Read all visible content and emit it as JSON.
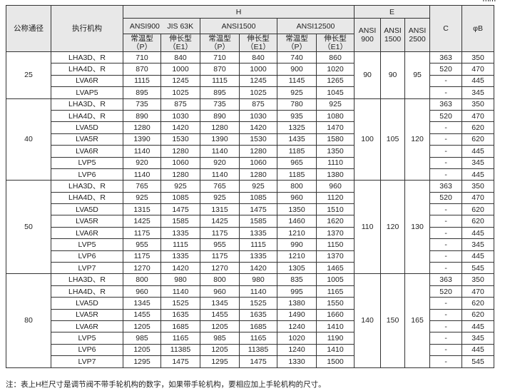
{
  "unit": "mm",
  "header": {
    "nominal": "公称通径",
    "actuator": "执行机构",
    "H": "H",
    "E": "E",
    "C": "C",
    "B": "φB",
    "h_groups": [
      "ANSI900　JIS 63K",
      "ANSI1500",
      "ANSI12500"
    ],
    "e_cols": [
      [
        "ANSI",
        "900"
      ],
      [
        "ANSI",
        "1500"
      ],
      [
        "ANSI",
        "2500"
      ]
    ],
    "std_type": [
      "常温型",
      "（P）"
    ],
    "ext_type": [
      "伸长型",
      "（E1）"
    ]
  },
  "groups": [
    {
      "size": "25",
      "E": [
        "90",
        "90",
        "95"
      ],
      "rows": [
        [
          "LHA3D、R",
          "710",
          "840",
          "710",
          "840",
          "740",
          "860",
          "363",
          "350"
        ],
        [
          "LHA4D、R",
          "870",
          "1000",
          "870",
          "1000",
          "900",
          "1020",
          "520",
          "470"
        ],
        [
          "LVA6R",
          "1115",
          "1245",
          "1115",
          "1245",
          "1145",
          "1265",
          "-",
          "445"
        ],
        [
          "LVAP5",
          "895",
          "1025",
          "895",
          "1025",
          "925",
          "1045",
          "-",
          "345"
        ]
      ]
    },
    {
      "size": "40",
      "E": [
        "100",
        "105",
        "120"
      ],
      "rows": [
        [
          "LHA3D、R",
          "735",
          "875",
          "735",
          "875",
          "780",
          "925",
          "363",
          "350"
        ],
        [
          "LHA4D、R",
          "890",
          "1030",
          "890",
          "1030",
          "935",
          "1080",
          "520",
          "470"
        ],
        [
          "LVA5D",
          "1280",
          "1420",
          "1280",
          "1420",
          "1325",
          "1470",
          "-",
          "620"
        ],
        [
          "LVA5R",
          "1390",
          "1530",
          "1390",
          "1530",
          "1435",
          "1580",
          "-",
          "620"
        ],
        [
          "LVA6R",
          "1140",
          "1280",
          "1140",
          "1280",
          "1185",
          "1350",
          "-",
          "445"
        ],
        [
          "LVP5",
          "920",
          "1060",
          "920",
          "1060",
          "965",
          "1110",
          "-",
          "345"
        ],
        [
          "LVP6",
          "1140",
          "1280",
          "1140",
          "1280",
          "1185",
          "1380",
          "-",
          "445"
        ]
      ]
    },
    {
      "size": "50",
      "E": [
        "110",
        "120",
        "130"
      ],
      "rows": [
        [
          "LHA3D、R",
          "765",
          "925",
          "765",
          "925",
          "800",
          "960",
          "363",
          "350"
        ],
        [
          "LHA4D、R",
          "925",
          "1085",
          "925",
          "1085",
          "960",
          "1120",
          "520",
          "470"
        ],
        [
          "LVA5D",
          "1315",
          "1475",
          "1315",
          "1475",
          "1350",
          "1510",
          "-",
          "620"
        ],
        [
          "LVA5R",
          "1425",
          "1585",
          "1425",
          "1585",
          "1460",
          "1620",
          "-",
          "620"
        ],
        [
          "LVA6R",
          "1175",
          "1335",
          "1175",
          "1335",
          "1210",
          "1370",
          "-",
          "445"
        ],
        [
          "LVP5",
          "955",
          "1115",
          "955",
          "1115",
          "990",
          "1150",
          "-",
          "345"
        ],
        [
          "LVP6",
          "1175",
          "1335",
          "1175",
          "1335",
          "1210",
          "1370",
          "-",
          "445"
        ],
        [
          "LVP7",
          "1270",
          "1420",
          "1270",
          "1420",
          "1305",
          "1465",
          "-",
          "545"
        ]
      ]
    },
    {
      "size": "80",
      "E": [
        "140",
        "150",
        "165"
      ],
      "rows": [
        [
          "LHA3D、R",
          "800",
          "980",
          "800",
          "980",
          "835",
          "1005",
          "363",
          "350"
        ],
        [
          "LHA4D、R",
          "960",
          "1140",
          "960",
          "1140",
          "995",
          "1165",
          "520",
          "470"
        ],
        [
          "LVA5D",
          "1345",
          "1525",
          "1345",
          "1525",
          "1380",
          "1550",
          "-",
          "620"
        ],
        [
          "LVA5R",
          "1455",
          "1635",
          "1455",
          "1635",
          "1490",
          "1660",
          "-",
          "620"
        ],
        [
          "LVA6R",
          "1205",
          "1685",
          "1205",
          "1685",
          "1240",
          "1410",
          "-",
          "445"
        ],
        [
          "LVP5",
          "985",
          "1165",
          "985",
          "1165",
          "1020",
          "1190",
          "-",
          "345"
        ],
        [
          "LVP6",
          "1205",
          "11385",
          "1205",
          "11385",
          "1240",
          "1410",
          "-",
          "445"
        ],
        [
          "LVP7",
          "1295",
          "1475",
          "1295",
          "1475",
          "1330",
          "1500",
          "-",
          "545"
        ]
      ]
    }
  ],
  "note": "注：表上H栏尺寸是调节阀不带手轮机构的数字，如果带手轮机构，要相应加上手轮机构的尺寸。"
}
